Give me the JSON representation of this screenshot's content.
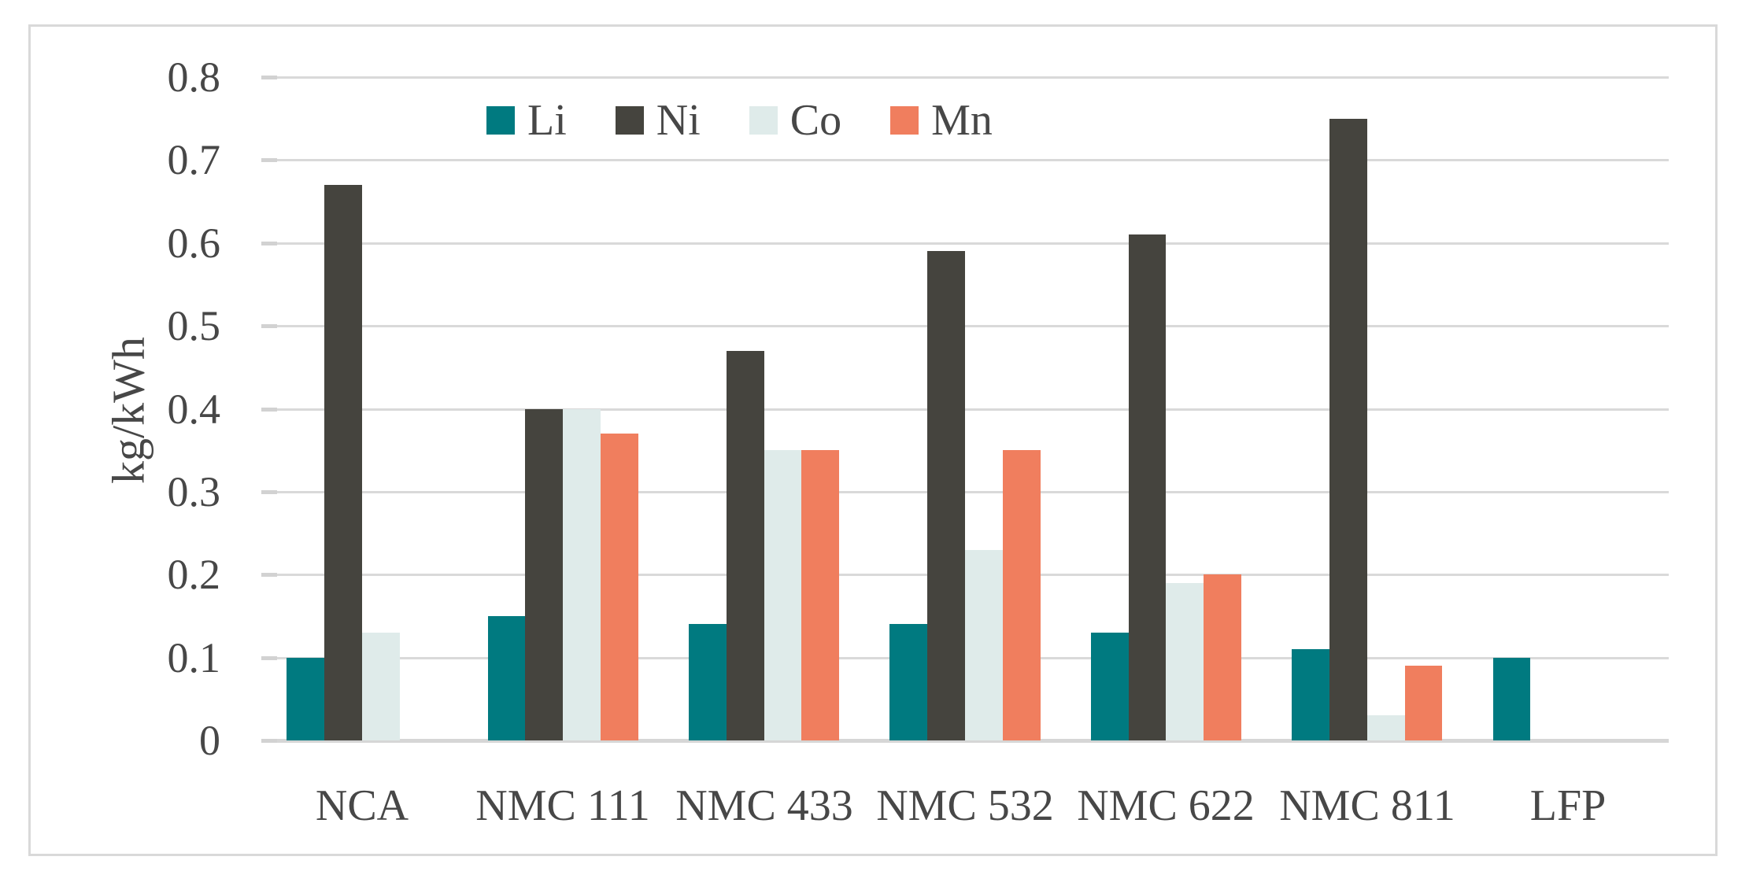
{
  "figure": {
    "background_color": "#FFFFFF",
    "border_color": "#D9D9D9",
    "gridline_color": "#D9D9D9",
    "tick_color": "#D2D2D2",
    "text_color": "#474747"
  },
  "chart_data": {
    "type": "bar",
    "title": "",
    "xlabel": "",
    "ylabel": "kg/kWh",
    "ylim": [
      0,
      0.8
    ],
    "ytick_step": 0.1,
    "ytick_labels": [
      "0",
      "0.1",
      "0.2",
      "0.3",
      "0.4",
      "0.5",
      "0.6",
      "0.7",
      "0.8"
    ],
    "grid": true,
    "legend_position": "top-inside",
    "legend_entries": [
      "Li",
      "Ni",
      "Co",
      "Mn"
    ],
    "categories": [
      "NCA",
      "NMC 111",
      "NMC 433",
      "NMC 532",
      "NMC 622",
      "NMC 811",
      "LFP"
    ],
    "series": [
      {
        "name": "Li",
        "color": "#007A80",
        "values": [
          0.1,
          0.15,
          0.14,
          0.14,
          0.13,
          0.11,
          0.1
        ]
      },
      {
        "name": "Ni",
        "color": "#45443E",
        "values": [
          0.67,
          0.4,
          0.47,
          0.59,
          0.61,
          0.75,
          0
        ]
      },
      {
        "name": "Co",
        "color": "#DFEBEA",
        "values": [
          0.13,
          0.4,
          0.35,
          0.23,
          0.19,
          0.03,
          0
        ]
      },
      {
        "name": "Mn",
        "color": "#F07E5E",
        "values": [
          0,
          0.37,
          0.35,
          0.35,
          0.2,
          0.09,
          0
        ]
      }
    ]
  }
}
